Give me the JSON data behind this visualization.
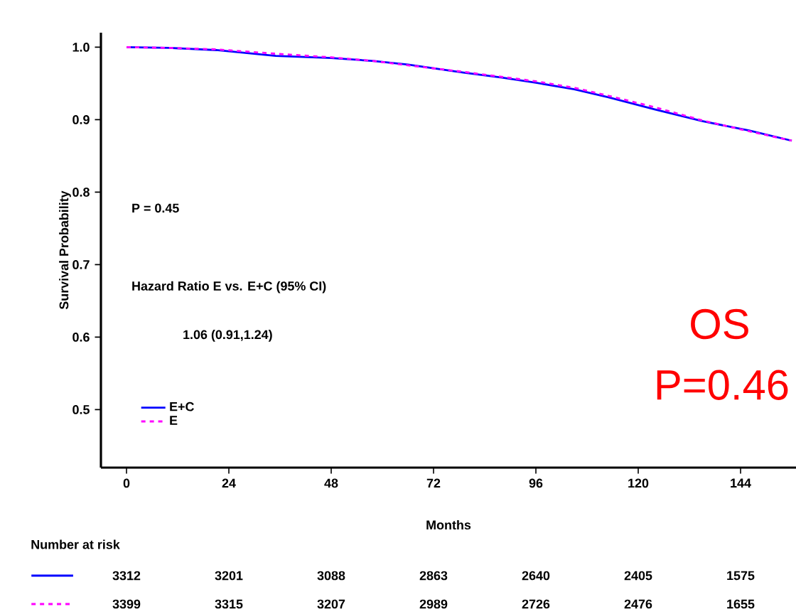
{
  "chart_data": {
    "type": "line",
    "xlabel": "Months",
    "ylabel": "Survival Probability",
    "xlim": [
      -6,
      157
    ],
    "ylim": [
      0.42,
      1.02
    ],
    "xticks": [
      0,
      24,
      48,
      72,
      96,
      120,
      144
    ],
    "yticks": [
      0.5,
      0.6,
      0.7,
      0.8,
      0.9,
      {
        "value": 1.0,
        "label": "1.0"
      }
    ],
    "legend": "bottom left",
    "grid": false,
    "series": [
      {
        "name": "E+C",
        "color": "#0000ff",
        "line_style": "solid",
        "x": [
          0,
          10,
          21,
          35,
          48,
          58,
          66,
          79,
          88,
          96,
          105,
          113,
          124,
          135,
          146,
          156
        ],
        "values": [
          1.0,
          0.999,
          0.996,
          0.988,
          0.985,
          0.981,
          0.976,
          0.965,
          0.958,
          0.951,
          0.942,
          0.931,
          0.914,
          0.898,
          0.885,
          0.871
        ]
      },
      {
        "name": "E",
        "color": "#ff00ff",
        "line_style": "dashed",
        "x": [
          0,
          10,
          21,
          35,
          48,
          58,
          66,
          79,
          88,
          96,
          105,
          113,
          124,
          135,
          146,
          156
        ],
        "values": [
          1.0,
          0.999,
          0.997,
          0.991,
          0.986,
          0.981,
          0.975,
          0.966,
          0.959,
          0.953,
          0.944,
          0.933,
          0.917,
          0.899,
          0.884,
          0.871
        ]
      }
    ],
    "annotations": [
      "P = 0.45",
      "Hazard Ratio E vs. E+C (95% CI)",
      "1.06 (0.91,1.24)",
      "OS",
      "P=0.46",
      "Number at risk",
      "3312",
      "3201",
      "3088",
      "2863",
      "2640",
      "2405",
      "1575",
      "3399",
      "3315",
      "3207",
      "2989",
      "2726",
      "2476",
      "1655"
    ]
  }
}
